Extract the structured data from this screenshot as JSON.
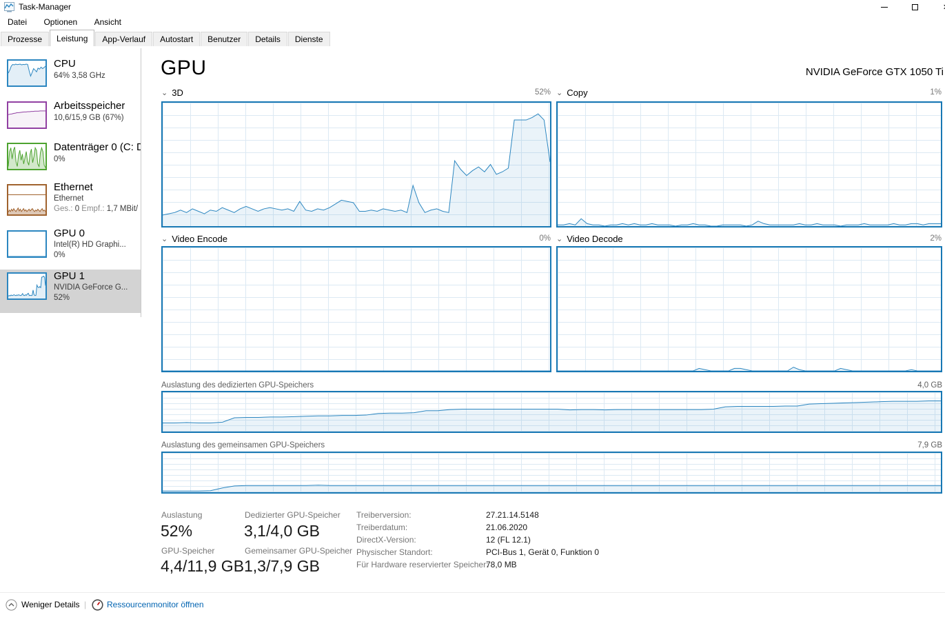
{
  "window": {
    "title": "Task-Manager"
  },
  "menu": {
    "items": [
      "Datei",
      "Optionen",
      "Ansicht"
    ]
  },
  "tabs": [
    "Prozesse",
    "Leistung",
    "App-Verlauf",
    "Autostart",
    "Benutzer",
    "Details",
    "Dienste"
  ],
  "active_tab": "Leistung",
  "sidebar": {
    "items": [
      {
        "title": "CPU",
        "line2": "64% 3,58 GHz"
      },
      {
        "title": "Arbeitsspeicher",
        "line2": "10,6/15,9 GB (67%)"
      },
      {
        "title": "Datenträger 0 (C: D",
        "line2": "0%"
      },
      {
        "title": "Ethernet",
        "line2": "Ethernet",
        "ges_label": "Ges.:",
        "ges_value": "0",
        "empf_label": "Empf.:",
        "empf_value": "1,7 MBit/"
      },
      {
        "title": "GPU 0",
        "line2": "Intel(R) HD Graphi...",
        "line3": "0%"
      },
      {
        "title": "GPU 1",
        "line2": "NVIDIA GeForce G...",
        "line3": "52%"
      }
    ]
  },
  "main": {
    "page_title": "GPU",
    "adapter_name": "NVIDIA GeForce GTX 1050 Ti",
    "panels": [
      {
        "label": "3D",
        "value": "52%"
      },
      {
        "label": "Copy",
        "value": "1%"
      },
      {
        "label": "Video Encode",
        "value": "0%"
      },
      {
        "label": "Video Decode",
        "value": "2%"
      }
    ],
    "memory_panels": [
      {
        "label": "Auslastung des dedizierten GPU-Speichers",
        "value": "4,0 GB"
      },
      {
        "label": "Auslastung des gemeinsamen GPU-Speichers",
        "value": "7,9 GB"
      }
    ],
    "stats": [
      {
        "label": "Auslastung",
        "value": "52%"
      },
      {
        "label": "Dedizierter GPU-Speicher",
        "value": "3,1/4,0 GB"
      },
      {
        "label": "GPU-Speicher",
        "value": "4,4/11,9 GB"
      },
      {
        "label": "Gemeinsamer GPU-Speicher",
        "value": "1,3/7,9 GB"
      }
    ],
    "details": [
      {
        "label": "Treiberversion:",
        "value": "27.21.14.5148"
      },
      {
        "label": "Treiberdatum:",
        "value": "21.06.2020"
      },
      {
        "label": "DirectX-Version:",
        "value": "12 (FL 12.1)"
      },
      {
        "label": "Physischer Standort:",
        "value": "PCI-Bus 1, Gerät 0, Funktion 0"
      },
      {
        "label": "Für Hardware reservierter Speicher:",
        "value": "78,0 MB"
      }
    ]
  },
  "footer": {
    "less_details": "Weniger Details",
    "resource_monitor": "Ressourcenmonitor öffnen",
    "pipe": "|"
  },
  "colors": {
    "chart_border_blue": "#1878b4",
    "chart_grid": "#dce9f3",
    "link_blue": "#0063b1",
    "selected_gray": "#d3d3d3",
    "memory_purple": "#9140a2",
    "disk_green": "#4da32f",
    "ethernet_brown": "#a0622d"
  },
  "chart_data": [
    {
      "id": "gpu-3d",
      "type": "area",
      "title": "3D",
      "unit": "%",
      "ylim": [
        0,
        100
      ],
      "current": 52,
      "grid": true,
      "stroke": "#2b86c0",
      "fill": "rgba(23,126,188,0.09)",
      "values": [
        9,
        10,
        11,
        13,
        11,
        14,
        12,
        10,
        13,
        12,
        15,
        13,
        11,
        14,
        16,
        14,
        12,
        14,
        15,
        14,
        13,
        14,
        12,
        20,
        13,
        12,
        14,
        13,
        15,
        18,
        21,
        20,
        19,
        12,
        12,
        13,
        12,
        14,
        13,
        12,
        13,
        11,
        33,
        19,
        11,
        13,
        14,
        12,
        11,
        53,
        46,
        41,
        45,
        48,
        44,
        50,
        42,
        44,
        47,
        86,
        86,
        86,
        88,
        91,
        86,
        52
      ]
    },
    {
      "id": "gpu-copy",
      "type": "area",
      "title": "Copy",
      "unit": "%",
      "ylim": [
        0,
        100
      ],
      "current": 1,
      "grid": true,
      "stroke": "#2b86c0",
      "fill": "rgba(23,126,188,0.09)",
      "values": [
        1,
        1,
        2,
        1,
        6,
        2,
        1,
        1,
        0,
        1,
        1,
        2,
        1,
        2,
        1,
        1,
        2,
        1,
        1,
        1,
        0,
        1,
        1,
        2,
        1,
        1,
        0,
        0,
        1,
        1,
        1,
        1,
        0,
        1,
        4,
        2,
        1,
        1,
        1,
        1,
        1,
        2,
        1,
        1,
        2,
        1,
        1,
        1,
        0,
        1,
        1,
        1,
        2,
        1,
        1,
        1,
        1,
        2,
        1,
        1,
        2,
        2,
        1,
        2,
        2,
        2
      ]
    },
    {
      "id": "gpu-video-encode",
      "type": "area",
      "title": "Video Encode",
      "unit": "%",
      "ylim": [
        0,
        100
      ],
      "current": 0,
      "grid": true,
      "stroke": "#2b86c0",
      "fill": "rgba(23,126,188,0.09)",
      "values": [
        0,
        0
      ]
    },
    {
      "id": "gpu-video-decode",
      "type": "area",
      "title": "Video Decode",
      "unit": "%",
      "ylim": [
        0,
        100
      ],
      "current": 2,
      "grid": true,
      "stroke": "#2b86c0",
      "fill": "rgba(23,126,188,0.09)",
      "values": [
        0,
        0,
        0,
        0,
        0,
        0,
        0,
        0,
        0,
        0,
        0,
        0,
        0,
        0,
        0,
        0,
        0,
        0,
        0,
        0,
        0,
        0,
        0,
        0,
        2,
        1,
        0,
        0,
        0,
        0,
        2,
        2,
        1,
        0,
        0,
        0,
        0,
        0,
        0,
        0,
        3,
        1,
        0,
        0,
        0,
        0,
        0,
        0,
        2,
        1,
        0,
        0,
        0,
        0,
        0,
        0,
        0,
        0,
        0,
        0,
        1,
        0,
        0,
        0,
        0,
        0
      ]
    },
    {
      "id": "dedicated-gpu-memory",
      "type": "area",
      "title": "Auslastung des dedizierten GPU-Speichers",
      "unit": "GB",
      "axis_max_label": "4,0 GB",
      "ylim_gb": [
        0,
        4.0
      ],
      "current_gb": 3.1,
      "grid": true,
      "stroke": "#2b86c0",
      "fill": "rgba(23,126,188,0.09)",
      "values": [
        22,
        22,
        23,
        22,
        22,
        24,
        35,
        36,
        36,
        37,
        37,
        38,
        39,
        40,
        40,
        41,
        41,
        42,
        46,
        47,
        47,
        48,
        53,
        53,
        56,
        57,
        57,
        57,
        57,
        57,
        57,
        57,
        57,
        57,
        55,
        56,
        56,
        55,
        56,
        56,
        56,
        56,
        56,
        56,
        56,
        56,
        57,
        63,
        64,
        64,
        64,
        64,
        65,
        65,
        70,
        71,
        72,
        73,
        74,
        75,
        76,
        77,
        77,
        77,
        78,
        78
      ]
    },
    {
      "id": "shared-gpu-memory",
      "type": "area",
      "title": "Auslastung des gemeinsamen GPU-Speichers",
      "unit": "GB",
      "axis_max_label": "7,9 GB",
      "ylim_gb": [
        0,
        7.9
      ],
      "current_gb": 1.3,
      "grid": true,
      "stroke": "#2b86c0",
      "fill": "rgba(23,126,188,0.09)",
      "values": [
        3,
        3,
        3,
        3,
        4,
        11,
        16,
        17,
        17,
        17,
        17,
        17,
        17,
        18,
        17,
        17,
        17,
        17,
        17,
        17,
        17,
        17,
        17,
        17,
        17,
        17,
        17,
        17,
        17,
        17,
        17,
        17,
        17,
        17,
        17,
        17,
        17,
        17,
        17,
        17,
        17,
        17,
        17,
        17,
        17,
        17,
        17,
        17,
        17,
        17,
        17,
        17,
        17,
        17,
        17,
        17,
        17,
        17,
        17,
        17,
        17,
        17,
        17,
        17,
        17,
        17
      ]
    },
    {
      "id": "mini-cpu",
      "type": "area",
      "title": "CPU",
      "unit": "%",
      "ylim": [
        0,
        100
      ],
      "border": "#2b86c0",
      "stroke": "#2b86c0",
      "fill": "rgba(23,126,188,0.12)",
      "values": [
        50,
        62,
        78,
        85,
        83,
        86,
        84,
        85,
        86,
        83,
        85,
        84,
        86,
        85,
        60,
        38,
        52,
        68,
        62,
        55,
        70,
        66,
        74,
        68,
        72,
        78
      ]
    },
    {
      "id": "mini-memory",
      "type": "area",
      "title": "Arbeitsspeicher",
      "unit": "%",
      "ylim": [
        0,
        100
      ],
      "border": "#9140a2",
      "stroke": "#9140a2",
      "fill": "rgba(145,64,162,0.07)",
      "values": [
        52,
        54,
        55,
        57,
        58,
        60,
        60,
        61,
        62,
        63,
        63,
        64,
        64,
        65,
        65,
        66,
        66,
        66,
        67,
        67,
        67,
        67
      ]
    },
    {
      "id": "mini-disk",
      "type": "area",
      "title": "Datenträger 0",
      "unit": "%",
      "ylim": [
        0,
        100
      ],
      "border": "#4da32f",
      "stroke": "#4da32f",
      "fill": "rgba(77,163,47,0.25)",
      "values": [
        10,
        70,
        85,
        40,
        75,
        88,
        30,
        10,
        55,
        75,
        35,
        60,
        20,
        45,
        70,
        30,
        15,
        60,
        80,
        25,
        50,
        85,
        75,
        20,
        10,
        65,
        85,
        70,
        15,
        5
      ]
    },
    {
      "id": "mini-ethernet",
      "type": "area",
      "title": "Ethernet",
      "unit": "MBit/s",
      "border": "#a0622d",
      "refline": 68,
      "stroke": "#a0622d",
      "fill": "rgba(160,98,45,0.35)",
      "values": [
        8,
        15,
        10,
        18,
        12,
        20,
        14,
        10,
        16,
        22,
        12,
        18,
        10,
        15,
        20,
        12,
        16,
        10,
        14,
        18,
        12,
        16,
        20,
        14,
        10,
        15,
        12,
        18,
        14,
        10,
        16,
        20,
        12,
        15,
        10
      ]
    },
    {
      "id": "mini-gpu0",
      "type": "area",
      "title": "GPU 0",
      "unit": "%",
      "ylim": [
        0,
        100
      ],
      "border": "#2b86c0",
      "stroke": "#2b86c0",
      "fill": "rgba(23,126,188,0.09)",
      "values": [
        0,
        0
      ]
    },
    {
      "id": "mini-gpu1",
      "type": "area",
      "title": "GPU 1",
      "unit": "%",
      "ylim": [
        0,
        100
      ],
      "border": "#2b86c0",
      "stroke": "#2b86c0",
      "fill": "rgba(23,126,188,0.12)",
      "values": [
        10,
        12,
        11,
        14,
        12,
        13,
        15,
        13,
        12,
        14,
        13,
        15,
        13,
        12,
        14,
        20,
        13,
        12,
        15,
        13,
        18,
        21,
        12,
        13,
        12,
        13,
        34,
        15,
        12,
        13,
        54,
        46,
        44,
        48,
        44,
        86,
        87,
        90,
        86,
        52
      ]
    }
  ]
}
